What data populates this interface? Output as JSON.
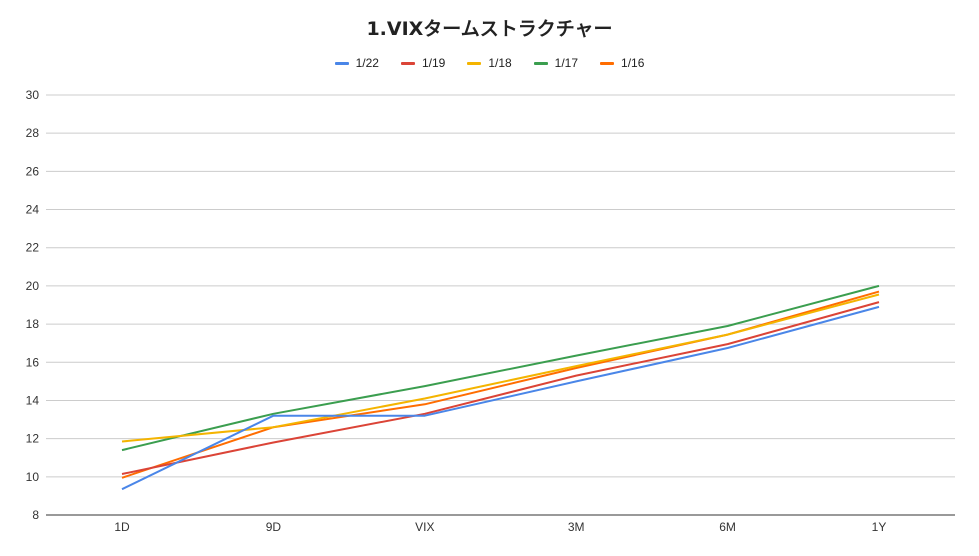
{
  "chart_data": {
    "type": "line",
    "title": "1.VIXタームストラクチャー",
    "xlabel": "",
    "ylabel": "",
    "categories": [
      "1D",
      "9D",
      "VIX",
      "3M",
      "6M",
      "1Y"
    ],
    "ylim": [
      8,
      30
    ],
    "yticks": [
      8,
      10,
      12,
      14,
      16,
      18,
      20,
      22,
      24,
      26,
      28,
      30
    ],
    "grid": true,
    "legend_position": "top",
    "series": [
      {
        "name": "1/22",
        "color": "#4a86e8",
        "values": [
          9.35,
          13.2,
          13.2,
          15.0,
          16.75,
          18.9
        ]
      },
      {
        "name": "1/19",
        "color": "#db4437",
        "values": [
          10.15,
          11.8,
          13.3,
          15.3,
          16.95,
          19.15
        ]
      },
      {
        "name": "1/18",
        "color": "#f4b400",
        "values": [
          11.85,
          12.6,
          14.1,
          15.8,
          17.45,
          19.55
        ]
      },
      {
        "name": "1/17",
        "color": "#3b9e4f",
        "values": [
          11.4,
          13.3,
          14.75,
          16.35,
          17.9,
          20.0
        ]
      },
      {
        "name": "1/16",
        "color": "#ff6d01",
        "values": [
          9.95,
          12.6,
          13.8,
          15.7,
          17.45,
          19.7
        ]
      }
    ]
  }
}
